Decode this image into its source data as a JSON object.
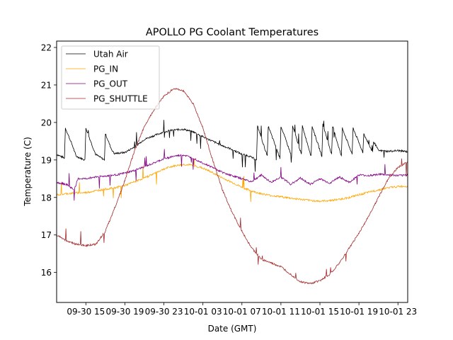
{
  "chart_data": {
    "type": "line",
    "title": "APOLLO PG Coolant Temperatures",
    "xlabel": "Date (GMT)",
    "ylabel": "Temperature (C)",
    "x_units": "hours since 09-30 12:00 GMT",
    "xlim": [
      0,
      36
    ],
    "ylim": [
      15.2,
      22.17
    ],
    "x_ticks": [
      {
        "value": 3,
        "label": "09-30 15"
      },
      {
        "value": 7,
        "label": "09-30 19"
      },
      {
        "value": 11,
        "label": "09-30 23"
      },
      {
        "value": 15,
        "label": "10-01 03"
      },
      {
        "value": 19,
        "label": "10-01 07"
      },
      {
        "value": 23,
        "label": "10-01 11"
      },
      {
        "value": 27,
        "label": "10-01 15"
      },
      {
        "value": 31,
        "label": "10-01 19"
      },
      {
        "value": 35,
        "label": "10-01 23"
      }
    ],
    "y_ticks": [
      {
        "value": 16,
        "label": "16"
      },
      {
        "value": 17,
        "label": "17"
      },
      {
        "value": 18,
        "label": "18"
      },
      {
        "value": 19,
        "label": "19"
      },
      {
        "value": 20,
        "label": "20"
      },
      {
        "value": 21,
        "label": "21"
      },
      {
        "value": 22,
        "label": "22"
      }
    ],
    "grid": false,
    "legend_position": "top-left",
    "series": [
      {
        "name": "Utah Air",
        "color": "#000000",
        "x": [
          0,
          0.8,
          0.9,
          1.6,
          2.0,
          2.9,
          3.0,
          3.7,
          4.0,
          4.9,
          5.0,
          5.6,
          5.9,
          7.0,
          8.0,
          9.0,
          10.0,
          11.0,
          12.0,
          13.0,
          14.0,
          15.0,
          16.0,
          17.0,
          18.0,
          19.0,
          19.6,
          20.5,
          20.6,
          21.6,
          21.7,
          22.9,
          23.0,
          24.1,
          24.2,
          25.1,
          25.2,
          26.1,
          26.2,
          27.2,
          27.3,
          28.2,
          28.3,
          29.2,
          29.3,
          30.3,
          30.4,
          31.4,
          31.5,
          32.4,
          32.5,
          33.0,
          34.0,
          35.0,
          36.0
        ],
        "values": [
          19.15,
          19.05,
          19.85,
          19.4,
          19.1,
          19.0,
          19.85,
          19.35,
          19.15,
          19.0,
          19.7,
          19.3,
          19.17,
          19.2,
          19.35,
          19.55,
          19.65,
          19.75,
          19.8,
          19.82,
          19.75,
          19.62,
          19.5,
          19.38,
          19.28,
          19.15,
          19.12,
          19.0,
          19.9,
          19.1,
          19.9,
          19.05,
          19.9,
          19.1,
          19.9,
          19.15,
          19.9,
          19.1,
          19.9,
          19.1,
          19.95,
          19.15,
          19.9,
          19.1,
          19.85,
          19.15,
          19.85,
          19.2,
          19.7,
          19.2,
          19.5,
          19.25,
          19.23,
          19.25,
          19.22
        ]
      },
      {
        "name": "PG_IN",
        "color": "#ffa500",
        "x": [
          0,
          1,
          2,
          3,
          4,
          5,
          6,
          7,
          8,
          9,
          10,
          11,
          12,
          13,
          14,
          15,
          16,
          17,
          18,
          19,
          20,
          21,
          22,
          23,
          24,
          25,
          26,
          27,
          28,
          29,
          30,
          31,
          32,
          33,
          34,
          35,
          36
        ],
        "values": [
          18.07,
          18.1,
          18.12,
          18.13,
          18.18,
          18.22,
          18.26,
          18.32,
          18.42,
          18.52,
          18.64,
          18.76,
          18.84,
          18.88,
          18.86,
          18.78,
          18.66,
          18.52,
          18.4,
          18.27,
          18.17,
          18.1,
          18.05,
          18.02,
          17.98,
          17.95,
          17.92,
          17.9,
          17.92,
          17.95,
          18.0,
          18.07,
          18.14,
          18.2,
          18.26,
          18.29,
          18.3
        ]
      },
      {
        "name": "PG_OUT",
        "color": "#800080",
        "x": [
          0,
          1,
          1.8,
          2.2,
          3,
          4,
          5,
          6,
          7,
          8,
          9,
          10,
          11,
          12,
          13,
          14,
          15,
          16,
          17,
          18,
          19,
          20,
          21,
          22,
          23,
          24,
          25,
          26,
          27,
          28,
          29,
          30,
          31,
          32,
          33,
          34,
          35,
          36
        ],
        "values": [
          18.4,
          18.35,
          18.2,
          18.5,
          18.5,
          18.55,
          18.57,
          18.6,
          18.65,
          18.72,
          18.82,
          18.92,
          19.03,
          19.1,
          19.13,
          19.05,
          18.92,
          18.8,
          18.67,
          18.58,
          18.5,
          18.42,
          18.6,
          18.4,
          18.55,
          18.35,
          18.52,
          18.35,
          18.5,
          18.38,
          18.55,
          18.4,
          18.6,
          18.58,
          18.62,
          18.6,
          18.58,
          18.6
        ]
      },
      {
        "name": "PG_SHUTTLE",
        "color": "#a52a2a",
        "x": [
          0,
          1,
          2,
          3,
          4,
          5,
          6,
          7,
          8,
          9,
          10,
          11,
          12,
          13,
          14,
          15,
          16,
          17,
          18,
          19,
          20,
          21,
          22,
          23,
          24,
          25,
          26,
          27,
          28,
          29,
          30,
          31,
          32,
          33,
          34,
          35,
          36
        ],
        "values": [
          17.0,
          16.85,
          16.75,
          16.72,
          16.75,
          17.1,
          17.75,
          18.45,
          19.25,
          19.9,
          20.35,
          20.7,
          20.9,
          20.85,
          20.5,
          19.85,
          19.0,
          18.2,
          17.6,
          17.1,
          16.65,
          16.35,
          16.25,
          16.15,
          15.95,
          15.75,
          15.7,
          15.78,
          15.95,
          16.25,
          16.65,
          17.05,
          17.5,
          18.0,
          18.5,
          18.8,
          18.95
        ]
      }
    ]
  }
}
